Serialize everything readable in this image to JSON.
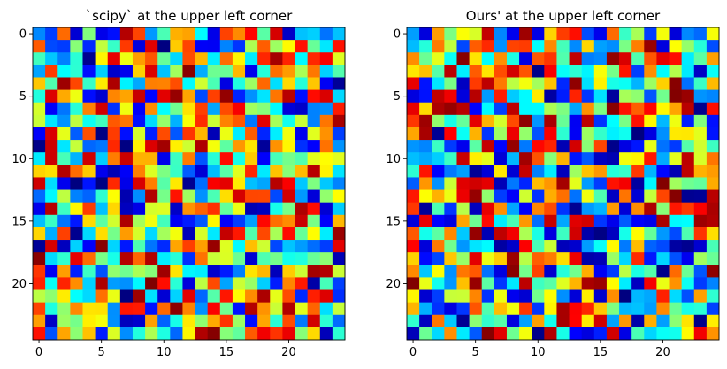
{
  "chart_data": [
    {
      "type": "heatmap",
      "title": "`scipy` at the upper left corner",
      "colormap": "jet",
      "value_range": [
        0,
        1
      ],
      "rows": 25,
      "cols": 25,
      "xticks": [
        0,
        5,
        10,
        15,
        20
      ],
      "yticks": [
        0,
        5,
        10,
        15,
        20
      ],
      "xlim": [
        -0.5,
        24.5
      ],
      "ylim": [
        24.5,
        -0.5
      ],
      "grid": false,
      "seed": 1
    },
    {
      "type": "heatmap",
      "title": "Ours' at the upper left corner",
      "colormap": "jet",
      "value_range": [
        0,
        1
      ],
      "rows": 25,
      "cols": 25,
      "xticks": [
        0,
        5,
        10,
        15,
        20
      ],
      "yticks": [
        0,
        5,
        10,
        15,
        20
      ],
      "xlim": [
        -0.5,
        24.5
      ],
      "ylim": [
        24.5,
        -0.5
      ],
      "grid": false,
      "seed": 2
    }
  ]
}
